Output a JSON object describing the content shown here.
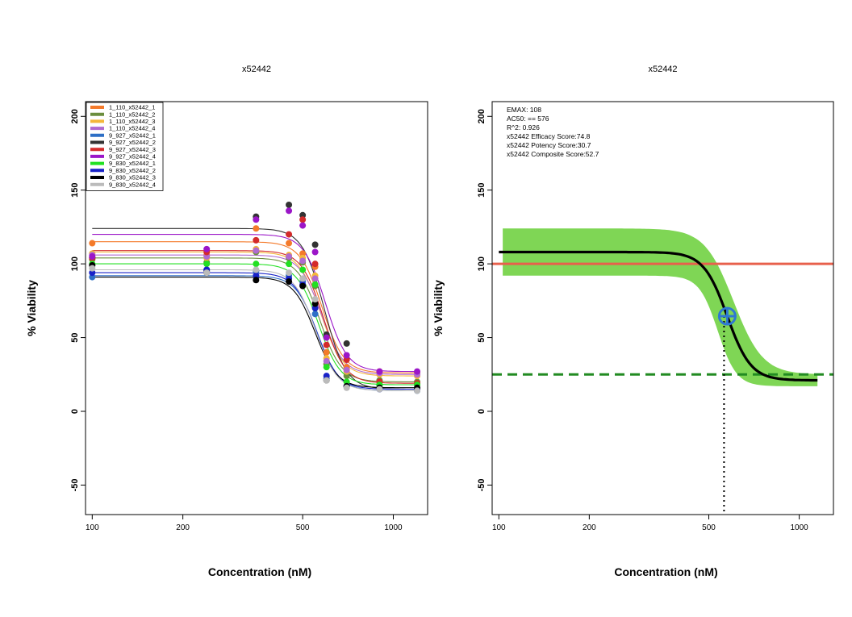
{
  "chart_data": [
    {
      "type": "scatter",
      "title": "x52442",
      "xlabel": "Concentration  (nM)",
      "ylabel": "% Viability",
      "x_scale": "log",
      "xlim": [
        95,
        1300
      ],
      "ylim": [
        -70,
        210
      ],
      "x_ticks": [
        100,
        200,
        500,
        1000
      ],
      "x_tick_labels": [
        "100",
        "200",
        "500",
        "1000"
      ],
      "y_ticks": [
        -50,
        0,
        50,
        100,
        150,
        200
      ],
      "y_tick_labels": [
        "-50",
        "0",
        "50",
        "100",
        "150",
        "200"
      ],
      "x": [
        100,
        240,
        350,
        450,
        500,
        550,
        600,
        700,
        900,
        1200
      ],
      "legend_position": "top-left",
      "series": [
        {
          "name": "1_110_x52442_1",
          "color": "#F47A2A",
          "top": 115,
          "bottom": 26,
          "ac50": 580,
          "values": [
            114,
            106,
            124,
            114,
            107,
            98,
            40,
            30,
            27,
            26
          ]
        },
        {
          "name": "1_110_x52442_2",
          "color": "#6B8E3E",
          "top": 104,
          "bottom": 20,
          "ac50": 570,
          "values": [
            103,
            101,
            108,
            104,
            101,
            85,
            32,
            24,
            21,
            20
          ]
        },
        {
          "name": "1_110_x52442_3",
          "color": "#F4B73A",
          "top": 108,
          "bottom": 24,
          "ac50": 575,
          "values": [
            107,
            104,
            110,
            106,
            104,
            92,
            36,
            27,
            25,
            24
          ]
        },
        {
          "name": "1_110_x52442_4",
          "color": "#B06AD0",
          "top": 106,
          "bottom": 25,
          "ac50": 578,
          "values": [
            106,
            105,
            109,
            105,
            102,
            90,
            34,
            28,
            26,
            25
          ]
        },
        {
          "name": "9_927_x52442_1",
          "color": "#2E6FC6",
          "top": 92,
          "bottom": 14,
          "ac50": 560,
          "values": [
            91,
            96,
            95,
            92,
            88,
            66,
            22,
            17,
            15,
            14
          ]
        },
        {
          "name": "9_927_x52442_2",
          "color": "#333333",
          "top": 124,
          "bottom": 15,
          "ac50": 590,
          "values": [
            104,
            95,
            132,
            140,
            133,
            113,
            52,
            46,
            18,
            15
          ]
        },
        {
          "name": "9_927_x52442_3",
          "color": "#D42A2A",
          "top": 109,
          "bottom": 19,
          "ac50": 585,
          "values": [
            104,
            108,
            116,
            120,
            130,
            100,
            45,
            35,
            20,
            19
          ]
        },
        {
          "name": "9_927_x52442_4",
          "color": "#9B16C8",
          "top": 120,
          "bottom": 27,
          "ac50": 595,
          "values": [
            105,
            110,
            130,
            136,
            126,
            108,
            50,
            38,
            27,
            27
          ]
        },
        {
          "name": "9_830_x52442_1",
          "color": "#22E022",
          "top": 100,
          "bottom": 18,
          "ac50": 565,
          "values": [
            100,
            100,
            100,
            100,
            96,
            86,
            30,
            20,
            18,
            18
          ]
        },
        {
          "name": "9_830_x52442_2",
          "color": "#1822C8",
          "top": 94,
          "bottom": 15,
          "ac50": 555,
          "values": [
            94,
            96,
            92,
            90,
            86,
            70,
            24,
            17,
            15,
            15
          ]
        },
        {
          "name": "9_830_x52442_3",
          "color": "#000000",
          "top": 91,
          "bottom": 16,
          "ac50": 550,
          "values": [
            99,
            94,
            89,
            88,
            85,
            73,
            21,
            17,
            16,
            16
          ]
        },
        {
          "name": "9_830_x52442_4",
          "color": "#BBBBBB",
          "top": 96,
          "bottom": 14,
          "ac50": 552,
          "values": [
            97,
            94,
            96,
            94,
            90,
            76,
            21,
            16,
            15,
            14
          ]
        }
      ]
    },
    {
      "type": "line",
      "title": "x52442",
      "xlabel": "Concentration  (nM)",
      "ylabel": "% Viability",
      "x_scale": "log",
      "xlim": [
        95,
        1300
      ],
      "ylim": [
        -70,
        210
      ],
      "x_ticks": [
        100,
        200,
        500,
        1000
      ],
      "x_tick_labels": [
        "100",
        "200",
        "500",
        "1000"
      ],
      "y_ticks": [
        -50,
        0,
        50,
        100,
        150,
        200
      ],
      "y_tick_labels": [
        "-50",
        "0",
        "50",
        "100",
        "150",
        "200"
      ],
      "fit": {
        "top": 108,
        "bottom": 21,
        "ac50": 576,
        "x_start": 100,
        "x_end": 1150,
        "color": "#000000"
      },
      "confidence_band": {
        "upper_top": 124,
        "lower_top": 92,
        "upper_bottom": 25,
        "lower_bottom": 17,
        "color": "#7FD655"
      },
      "ac50_point": {
        "x": 576,
        "y": 64.5,
        "color": "#2E78D2"
      },
      "reference_line": {
        "y": 100,
        "color": "#E8604C"
      },
      "bottom_line": {
        "y": 25,
        "color": "#228B22"
      },
      "annotations": [
        "EMAX: 108",
        "AC50: == 576",
        "R^2: 0.926",
        "x52442 Efficacy Score:74.8",
        "x52442 Potency Score:30.7",
        "x52442 Composite Score:52.7"
      ]
    }
  ]
}
